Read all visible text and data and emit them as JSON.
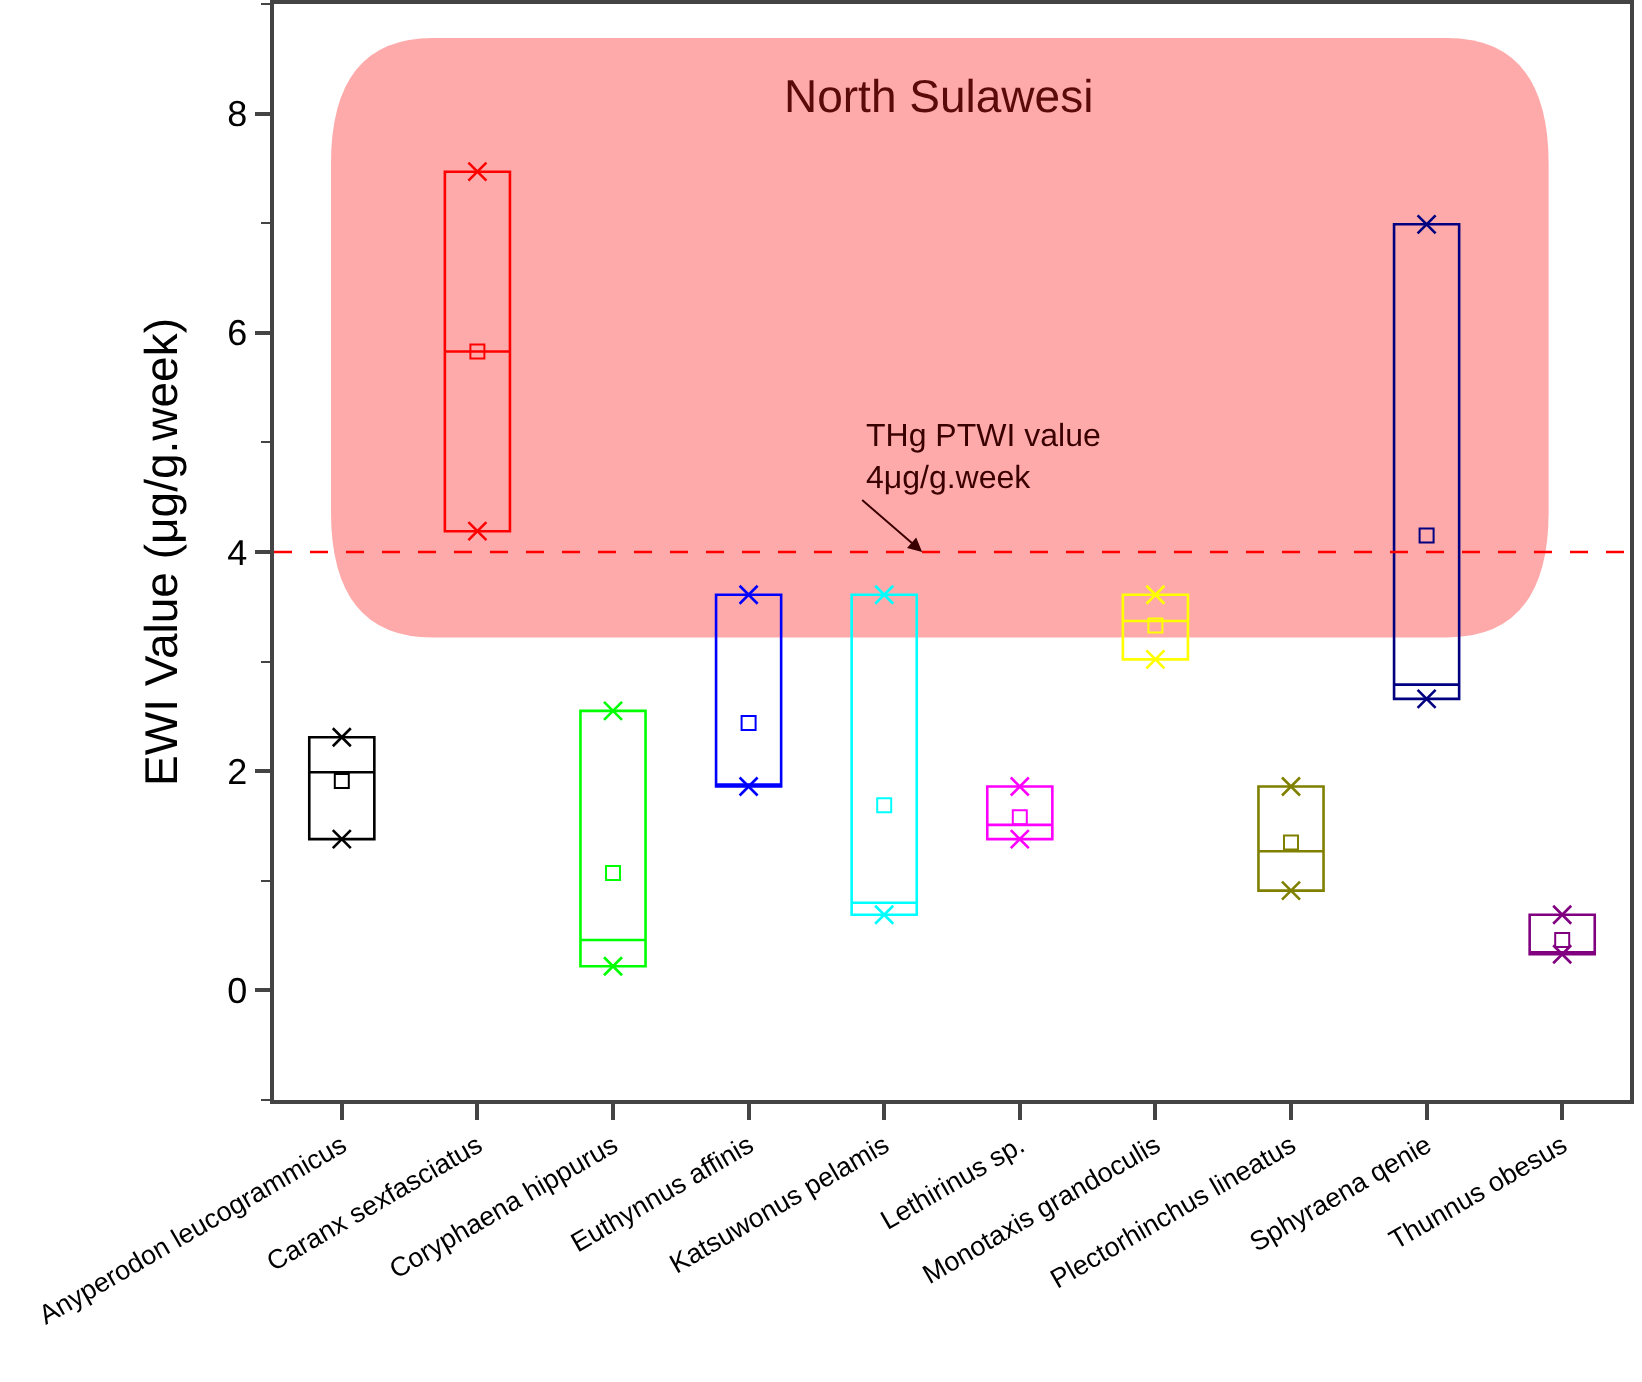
{
  "chart_data": {
    "type": "box",
    "ylabel": "EWI Value (μg/g.week)",
    "categories": [
      "Anyperodon leucogrammicus",
      "Caranx sexfasciatus",
      "Coryphaena hippurus",
      "Euthynnus affinis",
      "Katsuwonus pelamis",
      "Lethirinus sp.",
      "Monotaxis grandoculis",
      "Plectorhinchus lineatus",
      "Sphyraena qenie",
      "Thunnus obesus"
    ],
    "colors": [
      "#000000",
      "#ff0000",
      "#00ff00",
      "#0000ff",
      "#00ffff",
      "#ff00ff",
      "#ffff00",
      "#808000",
      "#000080",
      "#800080"
    ],
    "boxes": [
      {
        "low": 1.38,
        "q1": 1.38,
        "median": 1.99,
        "q3": 2.31,
        "high": 2.31,
        "mean": 1.91
      },
      {
        "low": 4.19,
        "q1": 4.19,
        "median": 5.83,
        "q3": 7.47,
        "high": 7.47,
        "mean": 5.83
      },
      {
        "low": 0.22,
        "q1": 0.22,
        "median": 0.46,
        "q3": 2.55,
        "high": 2.55,
        "mean": 1.07
      },
      {
        "low": 1.86,
        "q1": 1.86,
        "median": 1.86,
        "q3": 3.61,
        "high": 3.61,
        "mean": 2.44
      },
      {
        "low": 0.69,
        "q1": 0.69,
        "median": 0.8,
        "q3": 3.61,
        "high": 3.61,
        "mean": 1.69
      },
      {
        "low": 1.38,
        "q1": 1.38,
        "median": 1.51,
        "q3": 1.86,
        "high": 1.86,
        "mean": 1.58
      },
      {
        "low": 3.02,
        "q1": 3.02,
        "median": 3.37,
        "q3": 3.61,
        "high": 3.61,
        "mean": 3.33
      },
      {
        "low": 0.91,
        "q1": 0.91,
        "median": 1.27,
        "q3": 1.86,
        "high": 1.86,
        "mean": 1.35
      },
      {
        "low": 2.66,
        "q1": 2.66,
        "median": 2.79,
        "q3": 6.99,
        "high": 6.99,
        "mean": 4.15
      },
      {
        "low": 0.33,
        "q1": 0.33,
        "median": 0.33,
        "q3": 0.69,
        "high": 0.69,
        "mean": 0.46
      }
    ],
    "series": [
      {
        "type": "scatter",
        "marker": "cross",
        "x": [
          "Anyperodon leucogrammicus",
          "Caranx sexfasciatus",
          "Coryphaena hippurus",
          "Euthynnus affinis",
          "Katsuwonus pelamis",
          "Lethirinus sp.",
          "Monotaxis grandoculis",
          "Plectorhinchus lineatus",
          "Sphyraena qenie",
          "Thunnus obesus"
        ],
        "colors": [
          "#000000",
          "#ff0000",
          "#00ff00",
          "#0000ff",
          "#00ffff",
          "#ff00ff",
          "#ffff00",
          "#808000",
          "#000080",
          "#800080"
        ],
        "values": [
          1.38,
          4.19,
          0.22,
          1.86,
          0.69,
          1.38,
          3.02,
          0.91,
          2.66,
          0.33
        ]
      },
      {
        "type": "scatter",
        "marker": "cross",
        "x": [
          "Anyperodon leucogrammicus",
          "Caranx sexfasciatus",
          "Coryphaena hippurus",
          "Euthynnus affinis",
          "Katsuwonus pelamis",
          "Lethirinus sp.",
          "Monotaxis grandoculis",
          "Plectorhinchus lineatus",
          "Sphyraena qenie",
          "Thunnus obesus"
        ],
        "colors": [
          "#000000",
          "#ff0000",
          "#00ff00",
          "#0000ff",
          "#00ffff",
          "#ff00ff",
          "#ffff00",
          "#808000",
          "#000080",
          "#800080"
        ],
        "values": [
          2.31,
          7.47,
          2.55,
          3.61,
          3.61,
          1.86,
          3.61,
          1.86,
          6.99,
          0.69
        ]
      }
    ],
    "ylim": [
      -1,
      9
    ],
    "yticks": [
      0,
      2,
      4,
      6,
      8
    ],
    "ref_lines": [
      {
        "axis": "y",
        "value": 4,
        "label": "THg PTWI value\n4μg/g.week",
        "color": "#ff0000",
        "line_style": "dashed"
      }
    ],
    "bands": [
      {
        "axis": "y",
        "from": 3.22,
        "to": 8.69,
        "label": "North Sulawesi",
        "color": "#ffaaaa"
      }
    ],
    "grid": false
  }
}
